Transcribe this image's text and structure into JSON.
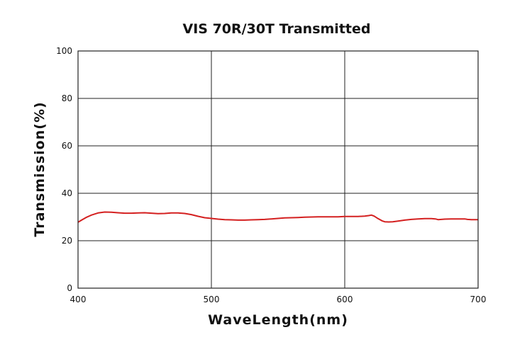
{
  "chart_data": {
    "type": "line",
    "title": "VIS 70R/30T Transmitted",
    "xlabel": "WaveLength(nm)",
    "ylabel": "Transmission(%)",
    "xlim": [
      400,
      700
    ],
    "ylim": [
      0,
      100
    ],
    "xticks": [
      "400",
      "500",
      "600",
      "700"
    ],
    "yticks": [
      "0",
      "20",
      "40",
      "60",
      "80",
      "100"
    ],
    "grid": true,
    "legend": "none",
    "series": [
      {
        "color": "#d42020",
        "x": [
          400,
          403,
          406,
          410,
          415,
          420,
          425,
          430,
          435,
          440,
          445,
          450,
          455,
          460,
          465,
          470,
          475,
          480,
          485,
          490,
          495,
          500,
          505,
          510,
          515,
          520,
          525,
          530,
          535,
          540,
          545,
          550,
          555,
          560,
          565,
          570,
          575,
          580,
          585,
          590,
          595,
          600,
          605,
          610,
          615,
          618,
          620,
          622,
          625,
          628,
          630,
          633,
          636,
          640,
          645,
          650,
          655,
          660,
          665,
          668,
          670,
          675,
          680,
          685,
          690,
          692,
          695,
          700
        ],
        "y": [
          27.8,
          28.8,
          29.8,
          30.8,
          31.7,
          32.1,
          32.0,
          31.8,
          31.6,
          31.6,
          31.7,
          31.8,
          31.6,
          31.4,
          31.5,
          31.7,
          31.7,
          31.5,
          31.0,
          30.3,
          29.7,
          29.4,
          29.1,
          28.9,
          28.8,
          28.7,
          28.7,
          28.8,
          28.9,
          29.0,
          29.2,
          29.4,
          29.6,
          29.7,
          29.8,
          29.9,
          30.0,
          30.1,
          30.1,
          30.1,
          30.1,
          30.2,
          30.2,
          30.2,
          30.4,
          30.6,
          30.8,
          30.4,
          29.3,
          28.4,
          28.0,
          27.9,
          28.0,
          28.3,
          28.7,
          29.0,
          29.2,
          29.3,
          29.3,
          29.2,
          28.9,
          29.1,
          29.2,
          29.2,
          29.2,
          29.0,
          28.9,
          28.9
        ]
      }
    ]
  }
}
